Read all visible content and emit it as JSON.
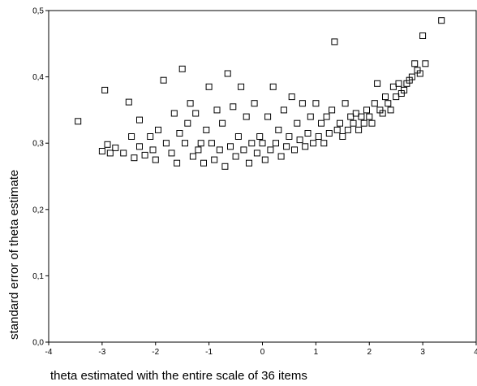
{
  "chart_data": {
    "type": "scatter",
    "title": "",
    "xlabel": "theta estimated with the entire scale of 36 items",
    "ylabel": "standard error of theta estimate",
    "xlim": [
      -4,
      4
    ],
    "ylim": [
      0,
      0.5
    ],
    "x_ticks": [
      "-4",
      "-3",
      "-2",
      "-1",
      "0",
      "1",
      "2",
      "3",
      "4"
    ],
    "y_ticks": [
      "0,0",
      "0,1",
      "0,2",
      "0,3",
      "0,4",
      "0,5"
    ],
    "marker": "hollow-square",
    "grid": false,
    "series": [
      {
        "points": [
          [
            -3.45,
            0.333
          ],
          [
            -3.0,
            0.288
          ],
          [
            -2.95,
            0.38
          ],
          [
            -2.9,
            0.298
          ],
          [
            -2.85,
            0.285
          ],
          [
            -2.75,
            0.293
          ],
          [
            -2.6,
            0.285
          ],
          [
            -2.5,
            0.362
          ],
          [
            -2.45,
            0.31
          ],
          [
            -2.4,
            0.278
          ],
          [
            -2.3,
            0.295
          ],
          [
            -2.3,
            0.335
          ],
          [
            -2.2,
            0.282
          ],
          [
            -2.1,
            0.31
          ],
          [
            -2.05,
            0.29
          ],
          [
            -2.0,
            0.275
          ],
          [
            -1.95,
            0.32
          ],
          [
            -1.85,
            0.395
          ],
          [
            -1.8,
            0.3
          ],
          [
            -1.7,
            0.285
          ],
          [
            -1.65,
            0.345
          ],
          [
            -1.6,
            0.27
          ],
          [
            -1.55,
            0.315
          ],
          [
            -1.5,
            0.412
          ],
          [
            -1.45,
            0.3
          ],
          [
            -1.4,
            0.33
          ],
          [
            -1.35,
            0.36
          ],
          [
            -1.3,
            0.28
          ],
          [
            -1.25,
            0.345
          ],
          [
            -1.2,
            0.29
          ],
          [
            -1.15,
            0.3
          ],
          [
            -1.1,
            0.27
          ],
          [
            -1.05,
            0.32
          ],
          [
            -1.0,
            0.385
          ],
          [
            -0.95,
            0.3
          ],
          [
            -0.9,
            0.275
          ],
          [
            -0.85,
            0.35
          ],
          [
            -0.8,
            0.29
          ],
          [
            -0.75,
            0.33
          ],
          [
            -0.7,
            0.265
          ],
          [
            -0.65,
            0.405
          ],
          [
            -0.6,
            0.295
          ],
          [
            -0.55,
            0.355
          ],
          [
            -0.5,
            0.28
          ],
          [
            -0.45,
            0.31
          ],
          [
            -0.4,
            0.385
          ],
          [
            -0.35,
            0.29
          ],
          [
            -0.3,
            0.34
          ],
          [
            -0.25,
            0.27
          ],
          [
            -0.2,
            0.3
          ],
          [
            -0.15,
            0.36
          ],
          [
            -0.1,
            0.285
          ],
          [
            -0.05,
            0.31
          ],
          [
            0.0,
            0.3
          ],
          [
            0.05,
            0.275
          ],
          [
            0.1,
            0.34
          ],
          [
            0.15,
            0.29
          ],
          [
            0.2,
            0.385
          ],
          [
            0.25,
            0.3
          ],
          [
            0.3,
            0.32
          ],
          [
            0.35,
            0.28
          ],
          [
            0.4,
            0.35
          ],
          [
            0.45,
            0.295
          ],
          [
            0.5,
            0.31
          ],
          [
            0.55,
            0.37
          ],
          [
            0.6,
            0.29
          ],
          [
            0.65,
            0.33
          ],
          [
            0.7,
            0.305
          ],
          [
            0.75,
            0.36
          ],
          [
            0.8,
            0.295
          ],
          [
            0.85,
            0.315
          ],
          [
            0.9,
            0.34
          ],
          [
            0.95,
            0.3
          ],
          [
            1.0,
            0.36
          ],
          [
            1.05,
            0.31
          ],
          [
            1.1,
            0.33
          ],
          [
            1.15,
            0.3
          ],
          [
            1.2,
            0.34
          ],
          [
            1.25,
            0.315
          ],
          [
            1.3,
            0.35
          ],
          [
            1.35,
            0.453
          ],
          [
            1.4,
            0.32
          ],
          [
            1.45,
            0.33
          ],
          [
            1.5,
            0.31
          ],
          [
            1.55,
            0.36
          ],
          [
            1.6,
            0.32
          ],
          [
            1.65,
            0.34
          ],
          [
            1.7,
            0.33
          ],
          [
            1.75,
            0.345
          ],
          [
            1.8,
            0.32
          ],
          [
            1.85,
            0.34
          ],
          [
            1.9,
            0.33
          ],
          [
            1.95,
            0.35
          ],
          [
            2.0,
            0.34
          ],
          [
            2.05,
            0.33
          ],
          [
            2.1,
            0.36
          ],
          [
            2.15,
            0.39
          ],
          [
            2.2,
            0.35
          ],
          [
            2.25,
            0.345
          ],
          [
            2.3,
            0.37
          ],
          [
            2.35,
            0.36
          ],
          [
            2.4,
            0.35
          ],
          [
            2.45,
            0.385
          ],
          [
            2.5,
            0.37
          ],
          [
            2.55,
            0.39
          ],
          [
            2.6,
            0.375
          ],
          [
            2.65,
            0.38
          ],
          [
            2.7,
            0.39
          ],
          [
            2.75,
            0.395
          ],
          [
            2.8,
            0.4
          ],
          [
            2.85,
            0.42
          ],
          [
            2.9,
            0.41
          ],
          [
            2.95,
            0.405
          ],
          [
            3.05,
            0.42
          ],
          [
            3.0,
            0.462
          ],
          [
            3.35,
            0.485
          ]
        ]
      }
    ]
  }
}
